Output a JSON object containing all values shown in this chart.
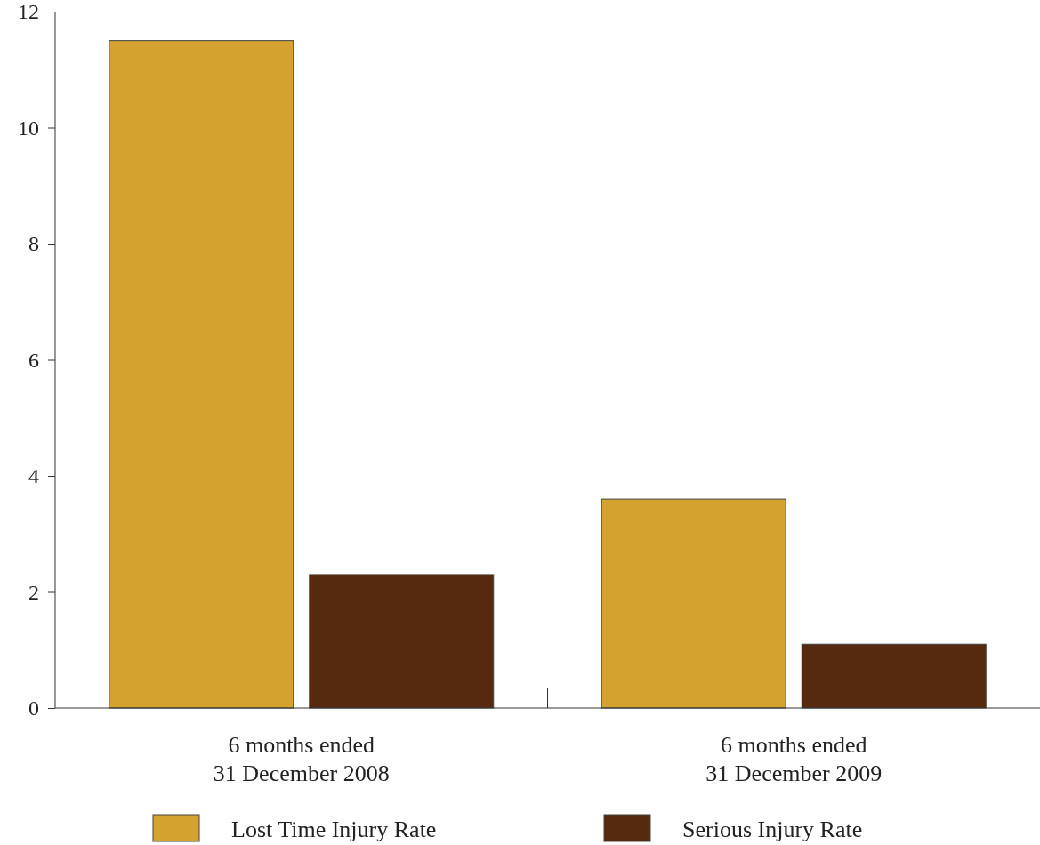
{
  "chart_data": {
    "type": "bar",
    "categories": [
      "6 months ended\n31 December 2008",
      "6 months ended\n31 December 2009"
    ],
    "series": [
      {
        "name": "Lost Time Injury Rate",
        "color": "#d4a22e",
        "values": [
          11.5,
          3.6
        ]
      },
      {
        "name": "Serious Injury Rate",
        "color": "#552a0e",
        "values": [
          2.3,
          1.1
        ]
      }
    ],
    "ylim": [
      0,
      12
    ],
    "yticks": [
      0,
      2,
      4,
      6,
      8,
      10,
      12
    ],
    "grid": false,
    "legend": "bottom"
  }
}
